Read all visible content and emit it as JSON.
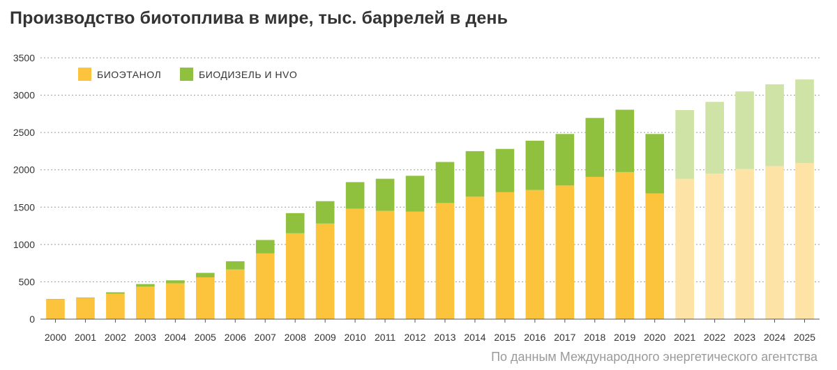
{
  "chart_data": {
    "type": "bar",
    "stacked": true,
    "title": "Производство биотоплива в мире, тыс. баррелей в день",
    "source": "По данным Международного энергетического агентства",
    "xlabel": "",
    "ylabel": "",
    "ylim": [
      0,
      3500
    ],
    "yticks": [
      "0",
      "500",
      "1000",
      "1500",
      "2000",
      "2500",
      "3000",
      "3500"
    ],
    "grid": true,
    "legend_position": "top-left",
    "categories": [
      "2000",
      "2001",
      "2002",
      "2003",
      "2004",
      "2005",
      "2006",
      "2007",
      "2008",
      "2009",
      "2010",
      "2011",
      "2012",
      "2013",
      "2014",
      "2015",
      "2016",
      "2017",
      "2018",
      "2019",
      "2020",
      "2021",
      "2022",
      "2023",
      "2024",
      "2025"
    ],
    "forecast_from": "2021",
    "series": [
      {
        "name": "БИОЭТАНОЛ",
        "color": "#fcc43d",
        "forecast_color": "#fde3a5",
        "values": [
          265,
          285,
          340,
          435,
          480,
          560,
          665,
          880,
          1150,
          1280,
          1480,
          1450,
          1440,
          1555,
          1640,
          1700,
          1730,
          1790,
          1905,
          1970,
          1685,
          1880,
          1950,
          2010,
          2050,
          2090
        ]
      },
      {
        "name": "БИОДИЗЕЛЬ И HVO",
        "color": "#8fc13e",
        "forecast_color": "#cfe3a6",
        "values": [
          5,
          5,
          20,
          35,
          40,
          60,
          110,
          180,
          270,
          300,
          355,
          430,
          480,
          550,
          610,
          580,
          660,
          690,
          790,
          835,
          795,
          920,
          960,
          1040,
          1095,
          1120
        ]
      }
    ]
  }
}
